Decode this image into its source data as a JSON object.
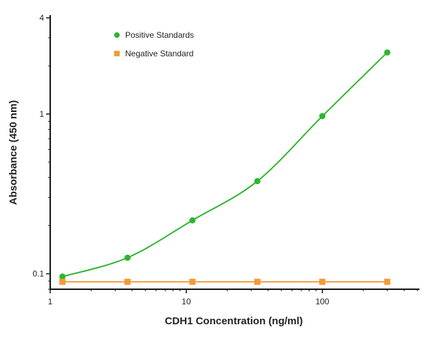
{
  "chart_data": {
    "type": "scatter",
    "title": "",
    "xlabel": "CDH1 Concentration (ng/ml)",
    "ylabel": "Absorbance (450 nm)",
    "xscale": "log",
    "yscale": "log",
    "xlim": [
      1,
      500
    ],
    "ylim": [
      0.08,
      4
    ],
    "xticks": [
      {
        "value": 1,
        "label": "1"
      },
      {
        "value": 10,
        "label": "10"
      },
      {
        "value": 100,
        "label": "100"
      }
    ],
    "yticks": [
      {
        "value": 0.1,
        "label": "0.1"
      },
      {
        "value": 1,
        "label": "1"
      },
      {
        "value": 4,
        "label": "4"
      }
    ],
    "grid": false,
    "legend_placement": "top-left",
    "series": [
      {
        "name": "Positive Standards",
        "color": "#2db52d",
        "marker": "circle",
        "fit_curve": true,
        "x": [
          1.23,
          3.7,
          11.1,
          33.3,
          100,
          300
        ],
        "y": [
          0.096,
          0.126,
          0.216,
          0.38,
          0.97,
          2.43
        ]
      },
      {
        "name": "Negative Standard",
        "color": "#f39a3a",
        "marker": "square",
        "fit_curve": false,
        "x": [
          1.23,
          3.7,
          11.1,
          33.3,
          100,
          300
        ],
        "y": [
          0.089,
          0.089,
          0.089,
          0.089,
          0.089,
          0.089
        ]
      }
    ]
  }
}
